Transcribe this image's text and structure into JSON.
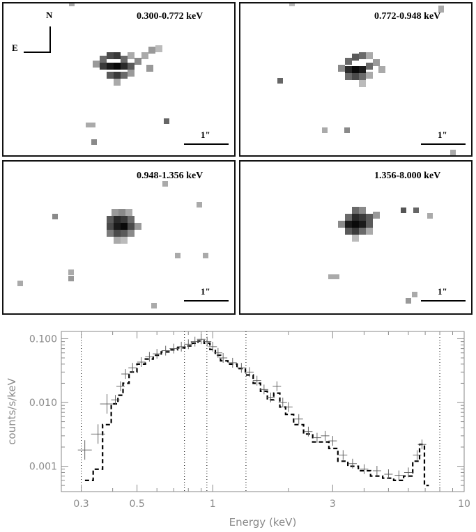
{
  "panels": [
    {
      "band": "0.300-0.772 keV",
      "scale": "1\""
    },
    {
      "band": "0.772-0.948 keV",
      "scale": "1\""
    },
    {
      "band": "0.948-1.356 keV",
      "scale": "1\""
    },
    {
      "band": "1.356-8.000 keV",
      "scale": "1\""
    }
  ],
  "compass": {
    "north": "N",
    "east": "E"
  },
  "chart_data": {
    "type": "scatter",
    "xlabel": "Energy (keV)",
    "ylabel": "counts/s/keV",
    "xscale": "log",
    "yscale": "log",
    "xlim": [
      0.25,
      10
    ],
    "ylim": [
      0.0004,
      0.13
    ],
    "xticks": [
      {
        "value": 0.3,
        "label": "0.3"
      },
      {
        "value": 0.5,
        "label": "0.5"
      },
      {
        "value": 1,
        "label": "1"
      },
      {
        "value": 3,
        "label": "3"
      },
      {
        "value": 10,
        "label": "10"
      }
    ],
    "yticks": [
      {
        "value": 0.1,
        "label": "0.100"
      },
      {
        "value": 0.01,
        "label": "0.010"
      },
      {
        "value": 0.001,
        "label": "0.001"
      }
    ],
    "band_boundaries": [
      0.3,
      0.772,
      0.948,
      1.356,
      8.0
    ],
    "series": [
      {
        "style": "crosses",
        "x": [
          0.31,
          0.35,
          0.38,
          0.41,
          0.43,
          0.45,
          0.48,
          0.52,
          0.56,
          0.6,
          0.65,
          0.7,
          0.75,
          0.8,
          0.85,
          0.9,
          0.95,
          1.0,
          1.05,
          1.1,
          1.2,
          1.3,
          1.4,
          1.5,
          1.6,
          1.7,
          1.8,
          1.9,
          2.0,
          2.2,
          2.4,
          2.6,
          2.8,
          3.0,
          3.3,
          3.6,
          4.0,
          4.5,
          5.0,
          5.5,
          6.0,
          6.5,
          6.8
        ],
        "y": [
          0.0018,
          0.0032,
          0.0095,
          0.011,
          0.018,
          0.028,
          0.035,
          0.043,
          0.052,
          0.058,
          0.065,
          0.07,
          0.075,
          0.082,
          0.09,
          0.098,
          0.09,
          0.075,
          0.06,
          0.05,
          0.042,
          0.035,
          0.03,
          0.022,
          0.016,
          0.012,
          0.018,
          0.01,
          0.0085,
          0.0055,
          0.0035,
          0.0028,
          0.003,
          0.0025,
          0.0015,
          0.0011,
          0.0009,
          0.00085,
          0.00075,
          0.00072,
          0.0008,
          0.0015,
          0.0022
        ]
      },
      {
        "style": "dashed-step",
        "x": [
          0.32,
          0.35,
          0.38,
          0.41,
          0.43,
          0.45,
          0.48,
          0.52,
          0.56,
          0.6,
          0.65,
          0.7,
          0.75,
          0.8,
          0.85,
          0.9,
          0.95,
          1.0,
          1.05,
          1.1,
          1.2,
          1.3,
          1.4,
          1.5,
          1.6,
          1.7,
          1.8,
          1.9,
          2.0,
          2.2,
          2.4,
          2.6,
          2.8,
          3.0,
          3.3,
          3.6,
          4.0,
          4.5,
          5.0,
          5.5,
          6.0,
          6.5,
          6.8,
          7.1
        ],
        "y": [
          0.0006,
          0.0009,
          0.0045,
          0.0095,
          0.013,
          0.02,
          0.03,
          0.04,
          0.048,
          0.055,
          0.062,
          0.067,
          0.072,
          0.077,
          0.085,
          0.092,
          0.085,
          0.068,
          0.055,
          0.045,
          0.04,
          0.034,
          0.027,
          0.02,
          0.015,
          0.011,
          0.014,
          0.0085,
          0.0065,
          0.0045,
          0.0032,
          0.0024,
          0.0024,
          0.0019,
          0.0012,
          0.001,
          0.00085,
          0.0007,
          0.00065,
          0.0006,
          0.0007,
          0.0012,
          0.0022,
          0.0005
        ]
      }
    ]
  }
}
